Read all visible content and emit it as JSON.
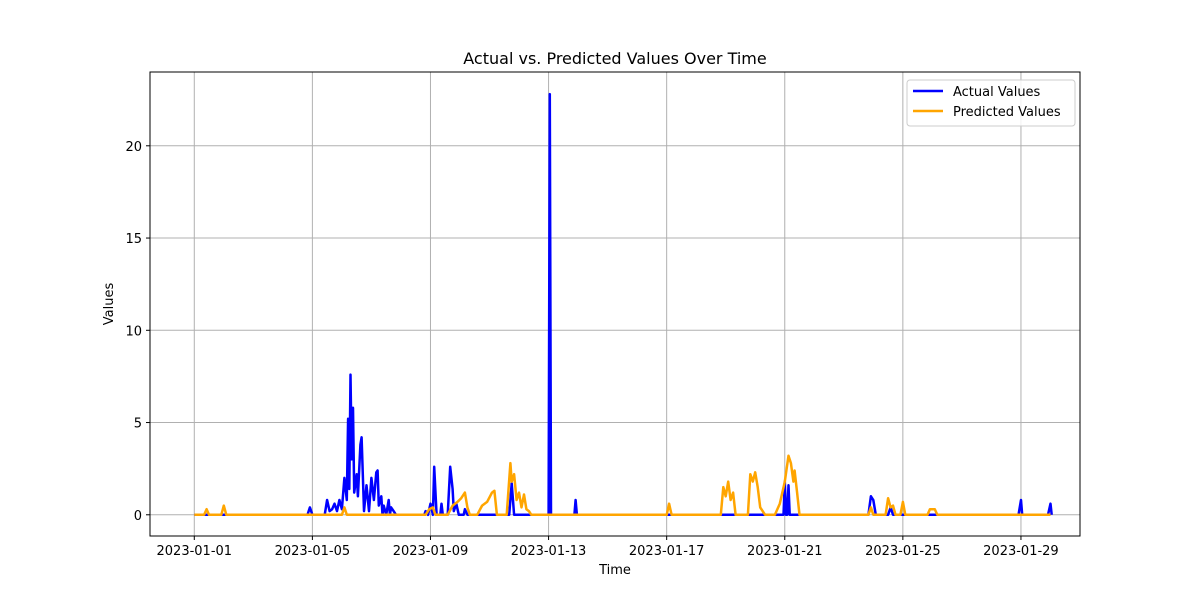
{
  "chart_data": {
    "type": "line",
    "title": "Actual vs. Predicted Values Over Time",
    "xlabel": "Time",
    "ylabel": "Values",
    "x_ticks": [
      "2023-01-01",
      "2023-01-05",
      "2023-01-09",
      "2023-01-13",
      "2023-01-17",
      "2023-01-21",
      "2023-01-25",
      "2023-01-29"
    ],
    "y_ticks": [
      0,
      5,
      10,
      15,
      20
    ],
    "xlim": [
      "2022-12-30T12:00",
      "2023-01-31T00:00"
    ],
    "ylim": [
      -1.15,
      24.0
    ],
    "grid": true,
    "legend_position": "upper right",
    "series": [
      {
        "name": "Actual Values",
        "color": "#0000ff",
        "points": [
          [
            "2023-01-01T00:00",
            0
          ],
          [
            "2023-01-04T20:00",
            0
          ],
          [
            "2023-01-04T22:00",
            0.4
          ],
          [
            "2023-01-05T00:00",
            0
          ],
          [
            "2023-01-05T10:00",
            0
          ],
          [
            "2023-01-05T12:00",
            0.8
          ],
          [
            "2023-01-05T14:00",
            0.2
          ],
          [
            "2023-01-05T16:00",
            0.3
          ],
          [
            "2023-01-05T18:00",
            0.6
          ],
          [
            "2023-01-05T20:00",
            0.2
          ],
          [
            "2023-01-05T22:00",
            0.8
          ],
          [
            "2023-01-06T00:00",
            0.3
          ],
          [
            "2023-01-06T02:00",
            2.0
          ],
          [
            "2023-01-06T04:00",
            0.8
          ],
          [
            "2023-01-06T05:00",
            5.2
          ],
          [
            "2023-01-06T06:00",
            1.4
          ],
          [
            "2023-01-06T07:00",
            7.6
          ],
          [
            "2023-01-06T08:00",
            3.0
          ],
          [
            "2023-01-06T09:00",
            5.8
          ],
          [
            "2023-01-06T10:00",
            1.2
          ],
          [
            "2023-01-06T12:00",
            2.2
          ],
          [
            "2023-01-06T13:00",
            1.0
          ],
          [
            "2023-01-06T15:00",
            3.8
          ],
          [
            "2023-01-06T16:00",
            4.2
          ],
          [
            "2023-01-06T18:00",
            0.2
          ],
          [
            "2023-01-06T20:00",
            1.6
          ],
          [
            "2023-01-06T22:00",
            0.2
          ],
          [
            "2023-01-07T00:00",
            2.0
          ],
          [
            "2023-01-07T02:00",
            0.8
          ],
          [
            "2023-01-07T04:00",
            2.3
          ],
          [
            "2023-01-07T05:00",
            2.4
          ],
          [
            "2023-01-07T06:00",
            0.5
          ],
          [
            "2023-01-07T08:00",
            1.0
          ],
          [
            "2023-01-07T09:00",
            0
          ],
          [
            "2023-01-07T10:00",
            0.5
          ],
          [
            "2023-01-07T12:00",
            0
          ],
          [
            "2023-01-07T14:00",
            0.8
          ],
          [
            "2023-01-07T15:00",
            0
          ],
          [
            "2023-01-07T16:00",
            0.4
          ],
          [
            "2023-01-07T18:00",
            0.2
          ],
          [
            "2023-01-07T20:00",
            0
          ],
          [
            "2023-01-08T19:00",
            0
          ],
          [
            "2023-01-08T20:00",
            0.2
          ],
          [
            "2023-01-08T22:00",
            0
          ],
          [
            "2023-01-09T00:00",
            0.6
          ],
          [
            "2023-01-09T02:00",
            0
          ],
          [
            "2023-01-09T03:00",
            2.6
          ],
          [
            "2023-01-09T05:00",
            0
          ],
          [
            "2023-01-09T08:00",
            0
          ],
          [
            "2023-01-09T09:00",
            0.6
          ],
          [
            "2023-01-09T10:00",
            0
          ],
          [
            "2023-01-09T14:00",
            0
          ],
          [
            "2023-01-09T16:00",
            2.6
          ],
          [
            "2023-01-09T18:00",
            1.4
          ],
          [
            "2023-01-09T19:00",
            0.2
          ],
          [
            "2023-01-09T21:00",
            0.6
          ],
          [
            "2023-01-09T23:00",
            0
          ],
          [
            "2023-01-10T03:00",
            0
          ],
          [
            "2023-01-10T04:00",
            0.3
          ],
          [
            "2023-01-10T06:00",
            0
          ],
          [
            "2023-01-11T16:00",
            0
          ],
          [
            "2023-01-11T18:00",
            1.7
          ],
          [
            "2023-01-11T20:00",
            0
          ],
          [
            "2023-01-13T00:00",
            0
          ],
          [
            "2023-01-13T01:00",
            22.8
          ],
          [
            "2023-01-13T02:00",
            0
          ],
          [
            "2023-01-13T21:00",
            0
          ],
          [
            "2023-01-13T22:00",
            0.8
          ],
          [
            "2023-01-13T23:00",
            0
          ],
          [
            "2023-01-20T23:00",
            0
          ],
          [
            "2023-01-21T00:00",
            1.8
          ],
          [
            "2023-01-21T01:00",
            0
          ],
          [
            "2023-01-21T02:00",
            0
          ],
          [
            "2023-01-21T03:00",
            1.6
          ],
          [
            "2023-01-21T04:00",
            0
          ],
          [
            "2023-01-23T20:00",
            0
          ],
          [
            "2023-01-23T22:00",
            1.0
          ],
          [
            "2023-01-24T00:00",
            0.8
          ],
          [
            "2023-01-24T02:00",
            0
          ],
          [
            "2023-01-24T12:00",
            0
          ],
          [
            "2023-01-24T14:00",
            0.4
          ],
          [
            "2023-01-24T16:00",
            0
          ],
          [
            "2023-01-28T22:00",
            0
          ],
          [
            "2023-01-29T00:00",
            0.8
          ],
          [
            "2023-01-29T01:00",
            0
          ],
          [
            "2023-01-29T22:00",
            0
          ],
          [
            "2023-01-30T00:00",
            0.6
          ],
          [
            "2023-01-30T01:00",
            0
          ]
        ]
      },
      {
        "name": "Predicted Values",
        "color": "#ffa500",
        "points": [
          [
            "2023-01-01T00:00",
            0
          ],
          [
            "2023-01-01T08:00",
            0
          ],
          [
            "2023-01-01T10:00",
            0.3
          ],
          [
            "2023-01-01T12:00",
            0
          ],
          [
            "2023-01-01T22:00",
            0
          ],
          [
            "2023-01-02T00:00",
            0.5
          ],
          [
            "2023-01-02T02:00",
            0
          ],
          [
            "2023-01-06T00:00",
            0
          ],
          [
            "2023-01-06T02:00",
            0.4
          ],
          [
            "2023-01-06T04:00",
            0
          ],
          [
            "2023-01-08T20:00",
            0
          ],
          [
            "2023-01-08T23:00",
            0.3
          ],
          [
            "2023-01-09T02:00",
            0.4
          ],
          [
            "2023-01-09T04:00",
            0
          ],
          [
            "2023-01-09T14:00",
            0
          ],
          [
            "2023-01-09T18:00",
            0.5
          ],
          [
            "2023-01-09T22:00",
            0.7
          ],
          [
            "2023-01-10T01:00",
            0.9
          ],
          [
            "2023-01-10T04:00",
            1.2
          ],
          [
            "2023-01-10T06:00",
            0.4
          ],
          [
            "2023-01-10T08:00",
            0
          ],
          [
            "2023-01-10T14:00",
            0
          ],
          [
            "2023-01-10T18:00",
            0.5
          ],
          [
            "2023-01-10T22:00",
            0.7
          ],
          [
            "2023-01-11T02:00",
            1.2
          ],
          [
            "2023-01-11T04:00",
            1.3
          ],
          [
            "2023-01-11T06:00",
            0
          ],
          [
            "2023-01-11T14:00",
            0
          ],
          [
            "2023-01-11T17:00",
            2.8
          ],
          [
            "2023-01-11T18:00",
            1.8
          ],
          [
            "2023-01-11T20:00",
            2.2
          ],
          [
            "2023-01-11T22:00",
            0.8
          ],
          [
            "2023-01-12T00:00",
            1.2
          ],
          [
            "2023-01-12T02:00",
            0.4
          ],
          [
            "2023-01-12T04:00",
            1.1
          ],
          [
            "2023-01-12T06:00",
            0.3
          ],
          [
            "2023-01-12T08:00",
            0.2
          ],
          [
            "2023-01-12T10:00",
            0
          ],
          [
            "2023-01-17T00:00",
            0
          ],
          [
            "2023-01-17T02:00",
            0.6
          ],
          [
            "2023-01-17T04:00",
            0
          ],
          [
            "2023-01-18T20:00",
            0
          ],
          [
            "2023-01-18T22:00",
            1.5
          ],
          [
            "2023-01-19T00:00",
            1.0
          ],
          [
            "2023-01-19T02:00",
            1.8
          ],
          [
            "2023-01-19T04:00",
            0.8
          ],
          [
            "2023-01-19T06:00",
            1.2
          ],
          [
            "2023-01-19T08:00",
            0
          ],
          [
            "2023-01-19T18:00",
            0
          ],
          [
            "2023-01-19T20:00",
            2.2
          ],
          [
            "2023-01-19T22:00",
            1.8
          ],
          [
            "2023-01-20T00:00",
            2.3
          ],
          [
            "2023-01-20T02:00",
            1.5
          ],
          [
            "2023-01-20T04:00",
            0.4
          ],
          [
            "2023-01-20T08:00",
            0
          ],
          [
            "2023-01-20T16:00",
            0
          ],
          [
            "2023-01-20T20:00",
            0.6
          ],
          [
            "2023-01-21T00:00",
            1.8
          ],
          [
            "2023-01-21T03:00",
            3.2
          ],
          [
            "2023-01-21T05:00",
            2.8
          ],
          [
            "2023-01-21T07:00",
            1.8
          ],
          [
            "2023-01-21T08:00",
            2.4
          ],
          [
            "2023-01-21T10:00",
            1.2
          ],
          [
            "2023-01-21T12:00",
            0
          ],
          [
            "2023-01-23T20:00",
            0
          ],
          [
            "2023-01-23T22:00",
            0.4
          ],
          [
            "2023-01-24T00:00",
            0
          ],
          [
            "2023-01-24T10:00",
            0
          ],
          [
            "2023-01-24T12:00",
            0.9
          ],
          [
            "2023-01-24T14:00",
            0.4
          ],
          [
            "2023-01-24T16:00",
            0.5
          ],
          [
            "2023-01-24T18:00",
            0
          ],
          [
            "2023-01-24T22:00",
            0
          ],
          [
            "2023-01-25T00:00",
            0.7
          ],
          [
            "2023-01-25T02:00",
            0
          ],
          [
            "2023-01-25T20:00",
            0
          ],
          [
            "2023-01-25T22:00",
            0.3
          ],
          [
            "2023-01-26T02:00",
            0.3
          ],
          [
            "2023-01-26T04:00",
            0
          ],
          [
            "2023-01-30T00:00",
            0
          ]
        ]
      }
    ]
  }
}
